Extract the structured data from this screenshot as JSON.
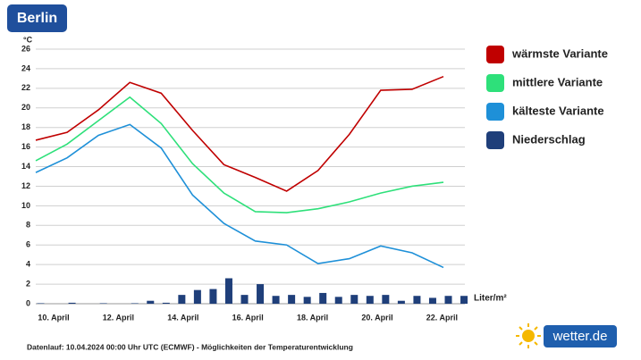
{
  "chart_data": {
    "type": "line",
    "title": "Berlin",
    "y_unit": "°C",
    "categories": [
      "10. April",
      null,
      "12. April",
      null,
      "14. April",
      null,
      "16. April",
      null,
      "18. April",
      null,
      "20. April",
      null,
      "22. April",
      null
    ],
    "series": [
      {
        "name": "wärmste Variante",
        "color": "#c00000",
        "values": [
          16.7,
          17.5,
          19.8,
          22.6,
          21.5,
          17.7,
          14.2,
          12.9,
          11.5,
          13.6,
          17.3,
          21.8,
          21.9,
          23.2
        ]
      },
      {
        "name": "mittlere Variante",
        "color": "#2ee07a",
        "values": [
          14.6,
          16.3,
          18.7,
          21.1,
          18.4,
          14.3,
          11.3,
          9.4,
          9.3,
          9.7,
          10.4,
          11.3,
          12.0,
          12.4
        ]
      },
      {
        "name": "kälteste Variante",
        "color": "#1e90d8",
        "values": [
          13.4,
          14.9,
          17.2,
          18.3,
          15.9,
          11.1,
          8.2,
          6.4,
          6.0,
          4.1,
          4.6,
          5.9,
          5.2,
          3.7
        ]
      }
    ],
    "bars": {
      "name": "Niederschlag",
      "color": "#1f3f7a",
      "unit_label": "Liter/m²",
      "values": [
        0.05,
        0,
        0.1,
        0,
        0.05,
        0,
        0.05,
        0.3,
        0.1,
        0.9,
        1.4,
        1.5,
        2.6,
        0.9,
        2.0,
        0.8,
        0.9,
        0.7,
        1.1,
        0.7,
        0.9,
        0.8,
        0.9,
        0.3,
        0.8,
        0.6,
        0.8,
        0.8
      ]
    },
    "ylim": [
      0,
      26
    ],
    "yticks": [
      0,
      2,
      4,
      6,
      8,
      10,
      12,
      14,
      16,
      18,
      20,
      22,
      24,
      26
    ],
    "grid": true,
    "footnote": "Datenlauf: 10.04.2024 00:00 Uhr UTC (ECMWF) - Möglichkeiten der Temperaturentwicklung",
    "logo": "wetter.de"
  }
}
